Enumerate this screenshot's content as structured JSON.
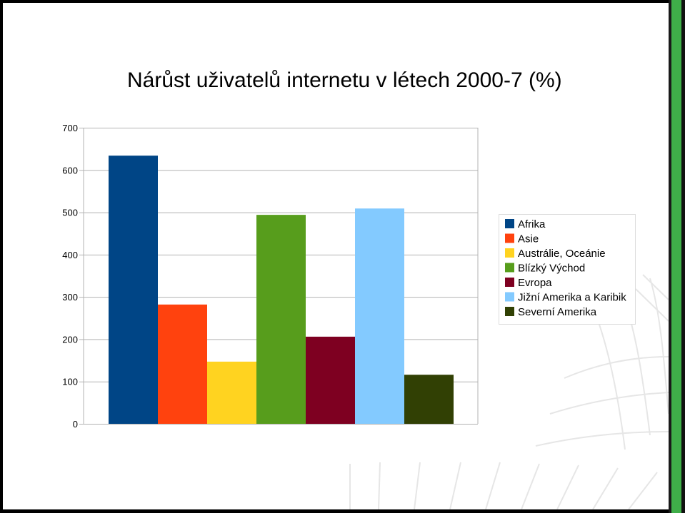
{
  "page": {
    "title": "Nárůst uživatelů internetu v létech 2000-7 (%)"
  },
  "chart_data": {
    "type": "bar",
    "title": "Nárůst uživatelů internetu v létech 2000-7 (%)",
    "xlabel": "",
    "ylabel": "",
    "ylim": [
      0,
      700
    ],
    "yticks": [
      "0",
      "100",
      "200",
      "300",
      "400",
      "500",
      "600",
      "700"
    ],
    "grid": true,
    "legend_position": "right",
    "series": [
      {
        "name": "Afrika",
        "value": 634,
        "color": "#004586"
      },
      {
        "name": "Asie",
        "value": 282,
        "color": "#ff420e"
      },
      {
        "name": "Austrálie, Oceánie",
        "value": 147,
        "color": "#ffd320"
      },
      {
        "name": "Blízký Východ",
        "value": 494,
        "color": "#579d1c"
      },
      {
        "name": "Evropa",
        "value": 206,
        "color": "#7e0021"
      },
      {
        "name": "Jižní Amerika a Karibik",
        "value": 509,
        "color": "#83caff"
      },
      {
        "name": "Severní Amerika",
        "value": 116,
        "color": "#314004"
      }
    ]
  }
}
